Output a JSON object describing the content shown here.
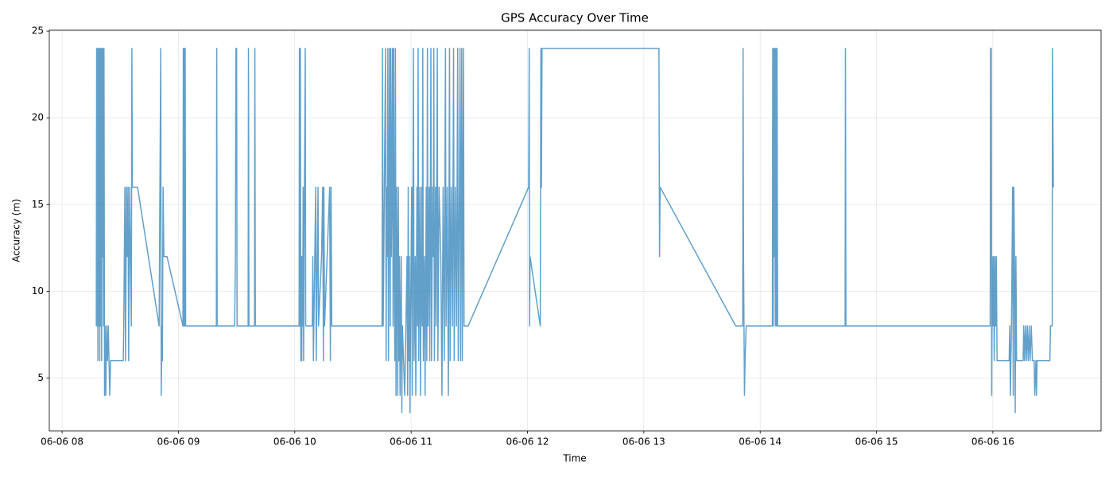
{
  "chart_data": {
    "type": "line",
    "title": "GPS Accuracy Over Time",
    "xlabel": "Time",
    "ylabel": "Accuracy (m)",
    "color": "#1f77b4",
    "grid": true,
    "xlim": [
      7.89,
      16.93
    ],
    "ylim": [
      1.95,
      25.05
    ],
    "xticks": [
      {
        "value": 8,
        "label": "06-06 08"
      },
      {
        "value": 9,
        "label": "06-06 09"
      },
      {
        "value": 10,
        "label": "06-06 10"
      },
      {
        "value": 11,
        "label": "06-06 11"
      },
      {
        "value": 12,
        "label": "06-06 12"
      },
      {
        "value": 13,
        "label": "06-06 13"
      },
      {
        "value": 14,
        "label": "06-06 14"
      },
      {
        "value": 15,
        "label": "06-06 15"
      },
      {
        "value": 16,
        "label": "06-06 16"
      }
    ],
    "yticks": [
      5,
      10,
      15,
      20,
      25
    ],
    "x": [
      8.294,
      8.297,
      8.301,
      8.305,
      8.308,
      8.312,
      8.316,
      8.32,
      8.324,
      8.328,
      8.332,
      8.336,
      8.34,
      8.344,
      8.348,
      8.352,
      8.356,
      8.36,
      8.365,
      8.369,
      8.376,
      8.383,
      8.39,
      8.397,
      8.403,
      8.41,
      8.417,
      8.431,
      8.45,
      8.526,
      8.53,
      8.54,
      8.545,
      8.554,
      8.56,
      8.567,
      8.572,
      8.581,
      8.595,
      8.6,
      8.604,
      8.649,
      8.834,
      8.848,
      8.852,
      8.858,
      8.862,
      8.868,
      8.875,
      8.902,
      9.039,
      9.042,
      9.046,
      9.05,
      9.054,
      9.058,
      9.062,
      9.326,
      9.329,
      9.333,
      9.483,
      9.49,
      9.494,
      9.5,
      9.504,
      9.599,
      9.602,
      9.606,
      9.654,
      9.657,
      9.661,
      10.037,
      10.04,
      10.044,
      10.048,
      10.052,
      10.056,
      10.06,
      10.064,
      10.068,
      10.072,
      10.076,
      10.08,
      10.09,
      10.094,
      10.15,
      10.155,
      10.16,
      10.18,
      10.184,
      10.2,
      10.204,
      10.23,
      10.24,
      10.246,
      10.25,
      10.256,
      10.3,
      10.306,
      10.312,
      10.318,
      10.75,
      10.754,
      10.76,
      10.78,
      10.785,
      10.79,
      10.795,
      10.8,
      10.805,
      10.81,
      10.815,
      10.82,
      10.825,
      10.83,
      10.835,
      10.84,
      10.845,
      10.85,
      10.855,
      10.86,
      10.865,
      10.87,
      10.875,
      10.88,
      10.885,
      10.89,
      10.895,
      10.9,
      10.905,
      10.91,
      10.915,
      10.92,
      10.925,
      10.935,
      10.945,
      10.955,
      10.965,
      10.97,
      10.975,
      10.98,
      10.985,
      10.99,
      10.995,
      11.005,
      11.01,
      11.02,
      11.025,
      11.035,
      11.04,
      11.05,
      11.055,
      11.06,
      11.065,
      11.075,
      11.08,
      11.09,
      11.095,
      11.1,
      11.105,
      11.115,
      11.12,
      11.13,
      11.135,
      11.14,
      11.145,
      11.155,
      11.16,
      11.17,
      11.175,
      11.185,
      11.19,
      11.195,
      11.2,
      11.21,
      11.215,
      11.225,
      11.23,
      11.24,
      11.255,
      11.265,
      11.275,
      11.285,
      11.295,
      11.3,
      11.31,
      11.32,
      11.33,
      11.335,
      11.345,
      11.355,
      11.365,
      11.37,
      11.38,
      11.39,
      11.4,
      11.405,
      11.415,
      11.42,
      11.425,
      11.435,
      11.44,
      11.45,
      11.455,
      11.49,
      12.01,
      12.015,
      12.018,
      12.022,
      12.11,
      12.115,
      12.12,
      12.125,
      12.135,
      13.13,
      13.135,
      13.14,
      13.79,
      13.85,
      13.853,
      13.857,
      13.865,
      13.87,
      13.88,
      14.105,
      14.108,
      14.112,
      14.116,
      14.12,
      14.125,
      14.13,
      14.135,
      14.14,
      14.145,
      14.15,
      14.73,
      14.733,
      14.737,
      15.977,
      15.98,
      15.983,
      15.986,
      15.99,
      15.994,
      16.0,
      16.006,
      16.012,
      16.018,
      16.024,
      16.03,
      16.036,
      16.14,
      16.145,
      16.15,
      16.16,
      16.17,
      16.175,
      16.18,
      16.186,
      16.192,
      16.198,
      16.204,
      16.26,
      16.265,
      16.272,
      16.28,
      16.288,
      16.296,
      16.304,
      16.312,
      16.32,
      16.33,
      16.34,
      16.355,
      16.36,
      16.37,
      16.375,
      16.38,
      16.49,
      16.495,
      16.51,
      16.512,
      16.52
    ],
    "values": [
      8,
      24,
      8,
      24,
      6,
      24,
      8,
      24,
      6,
      24,
      8,
      24,
      6,
      24,
      12,
      24,
      8,
      24,
      4,
      8,
      4,
      8,
      6,
      8,
      6,
      4,
      6,
      6,
      6,
      6,
      8,
      16,
      6,
      16,
      12,
      16,
      6,
      16,
      8,
      24,
      16,
      16,
      8,
      24,
      4,
      8,
      6,
      16,
      12,
      12,
      8,
      24,
      8,
      24,
      8,
      24,
      8,
      8,
      24,
      8,
      8,
      12,
      24,
      24,
      8,
      8,
      24,
      8,
      8,
      24,
      8,
      8,
      24,
      8,
      24,
      6,
      12,
      6,
      12,
      8,
      16,
      6,
      12,
      24,
      8,
      8,
      12,
      6,
      16,
      6,
      16,
      8,
      12,
      16,
      6,
      16,
      8,
      16,
      6,
      16,
      8,
      8,
      24,
      8,
      24,
      6,
      16,
      12,
      24,
      6,
      16,
      24,
      8,
      24,
      12,
      16,
      24,
      8,
      24,
      12,
      6,
      24,
      4,
      16,
      12,
      4,
      16,
      6,
      12,
      4,
      8,
      12,
      3,
      8,
      6,
      4,
      8,
      12,
      4,
      16,
      6,
      12,
      3,
      8,
      16,
      4,
      24,
      6,
      12,
      4,
      16,
      8,
      24,
      6,
      16,
      4,
      16,
      8,
      24,
      6,
      12,
      4,
      16,
      6,
      24,
      8,
      16,
      6,
      24,
      6,
      16,
      12,
      24,
      6,
      16,
      8,
      24,
      6,
      16,
      12,
      4,
      16,
      6,
      24,
      8,
      16,
      4,
      24,
      6,
      16,
      8,
      24,
      6,
      16,
      8,
      24,
      6,
      16,
      24,
      6,
      24,
      6,
      24,
      8,
      8,
      16,
      24,
      8,
      12,
      8,
      24,
      16,
      24,
      24,
      24,
      12,
      16,
      8,
      8,
      24,
      12,
      4,
      6,
      8,
      8,
      24,
      8,
      24,
      12,
      24,
      8,
      24,
      8,
      24,
      8,
      8,
      24,
      8,
      8,
      24,
      16,
      24,
      4,
      12,
      8,
      12,
      6,
      12,
      8,
      12,
      6,
      6,
      8,
      4,
      8,
      16,
      4,
      16,
      12,
      3,
      12,
      6,
      6,
      8,
      6,
      8,
      6,
      8,
      6,
      8,
      6,
      8,
      6,
      6,
      4,
      6,
      4,
      6,
      6,
      8,
      8,
      24,
      16
    ]
  }
}
